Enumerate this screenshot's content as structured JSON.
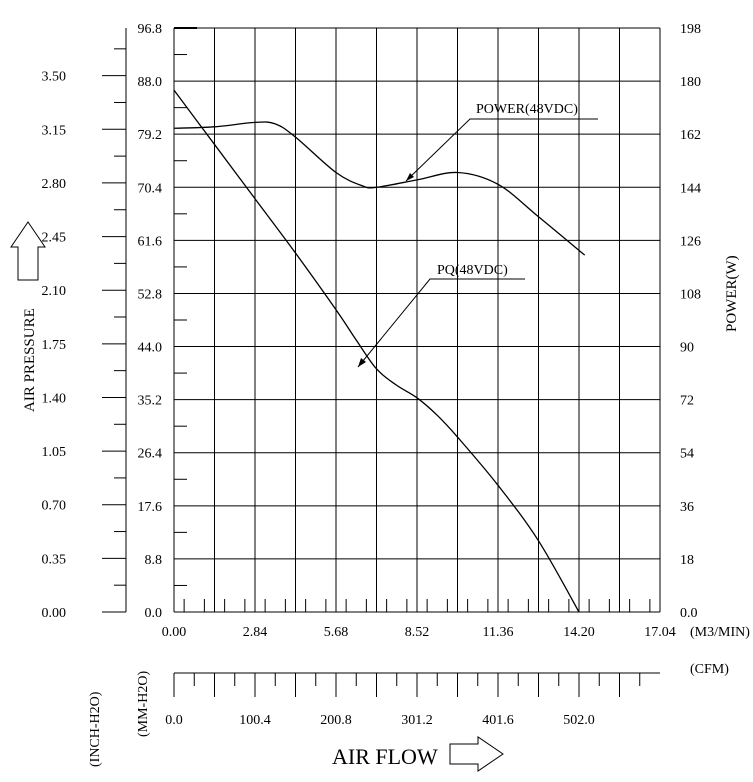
{
  "chart_data": {
    "type": "line",
    "title": "",
    "xlabel": "AIR FLOW",
    "x_unit": "(M3/MIN)",
    "x_secondary_unit": "(CFM)",
    "ylabel_left": "AIR PRESSURE",
    "y_unit_inch": "(INCH-H2O)",
    "y_unit_mm": "(MM-H2O)",
    "ylabel_right": "POWER(W)",
    "xlim": [
      0,
      17.04
    ],
    "ylim_mm": [
      0,
      96.8
    ],
    "ylim_power": [
      0,
      198
    ],
    "grid": true,
    "x_ticks": [
      "0.00",
      "2.84",
      "5.68",
      "8.52",
      "11.36",
      "14.20",
      "17.04"
    ],
    "cfm_ticks": [
      "0.0",
      "100.4",
      "200.8",
      "301.2",
      "401.6",
      "502.0"
    ],
    "mm_ticks": [
      "0.0",
      "8.8",
      "17.6",
      "26.4",
      "35.2",
      "44.0",
      "52.8",
      "61.6",
      "70.4",
      "79.2",
      "88.0",
      "96.8"
    ],
    "inch_ticks": [
      "0.00",
      "0.35",
      "0.70",
      "1.05",
      "1.40",
      "1.75",
      "2.10",
      "2.45",
      "2.80",
      "3.15",
      "3.50"
    ],
    "power_ticks": [
      "0.0",
      "18",
      "36",
      "54",
      "72",
      "90",
      "108",
      "126",
      "144",
      "162",
      "180",
      "198"
    ],
    "series": [
      {
        "name": "PQ(48VDC)",
        "axis": "mm",
        "x": [
          0,
          1.42,
          2.84,
          4.26,
          5.68,
          6.4,
          7.1,
          7.8,
          8.52,
          9.23,
          9.94,
          11.36,
          12.78,
          14.2
        ],
        "y": [
          86.5,
          77.5,
          68.5,
          59.5,
          50.1,
          45.0,
          40.3,
          37.6,
          35.5,
          32.6,
          29.0,
          21.0,
          11.8,
          0
        ]
      },
      {
        "name": "POWER(48VDC)",
        "axis": "power",
        "x": [
          0,
          1.42,
          2.84,
          3.55,
          4.26,
          5.68,
          6.6,
          7.1,
          8.52,
          9.94,
          11.36,
          12.78,
          14.4
        ],
        "y": [
          164,
          164.5,
          166,
          165.5,
          161,
          149,
          144.5,
          144,
          146.5,
          149,
          145,
          134,
          121
        ]
      }
    ],
    "annotations": [
      "POWER(48VDC)",
      "PQ(48VDC)"
    ]
  }
}
